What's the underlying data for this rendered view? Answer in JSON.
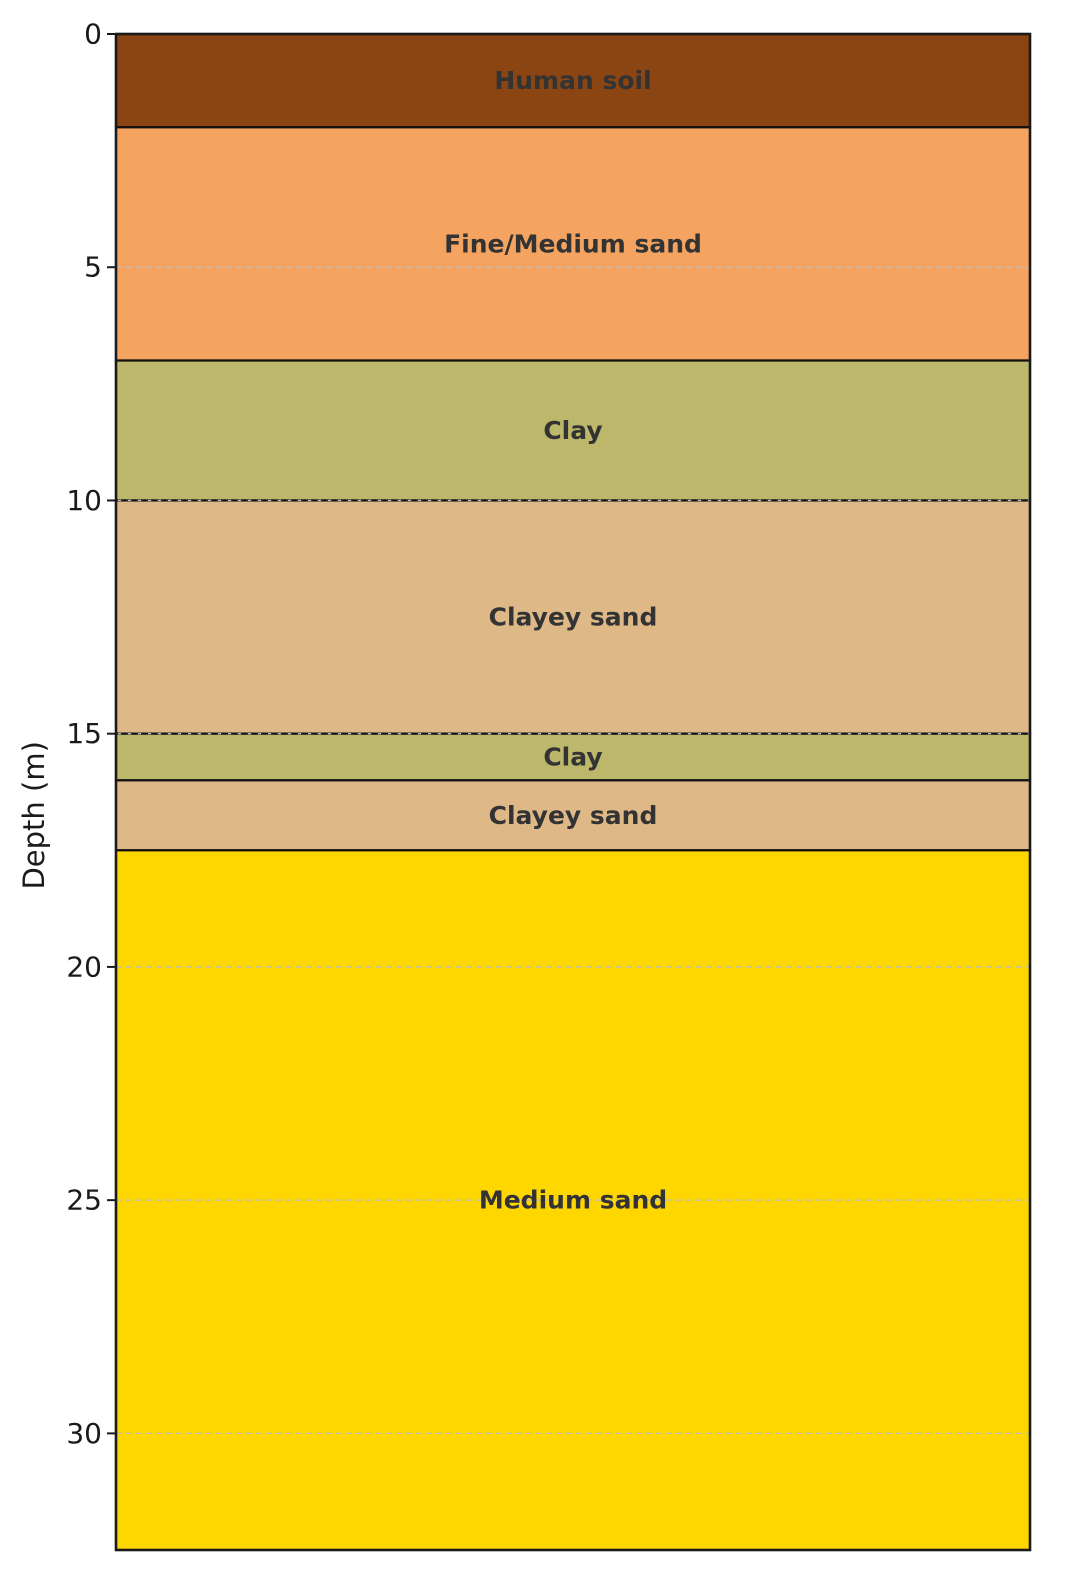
{
  "chart_data": {
    "type": "bar",
    "orientation": "vertical-stacked-column",
    "title": "",
    "xlabel": "",
    "ylabel": "Depth (m)",
    "ylim": [
      0,
      32.5
    ],
    "y_inverted": true,
    "yticks": [
      0,
      5,
      10,
      15,
      20,
      25,
      30
    ],
    "grid": "horizontal dashed",
    "layers": [
      {
        "name": "Human soil",
        "top": 0,
        "bottom": 2,
        "color": "#8B4513"
      },
      {
        "name": "Fine/Medium sand",
        "top": 2,
        "bottom": 7,
        "color": "#F4A460"
      },
      {
        "name": "Clay",
        "top": 7,
        "bottom": 10,
        "color": "#BDB76B"
      },
      {
        "name": "Clayey sand",
        "top": 10,
        "bottom": 15,
        "color": "#DEB887"
      },
      {
        "name": "Clay",
        "top": 15,
        "bottom": 16,
        "color": "#BDB76B"
      },
      {
        "name": "Clayey sand",
        "top": 16,
        "bottom": 17.5,
        "color": "#DEB887"
      },
      {
        "name": "Medium sand",
        "top": 17.5,
        "bottom": 32.5,
        "color": "#FFD700"
      }
    ]
  }
}
